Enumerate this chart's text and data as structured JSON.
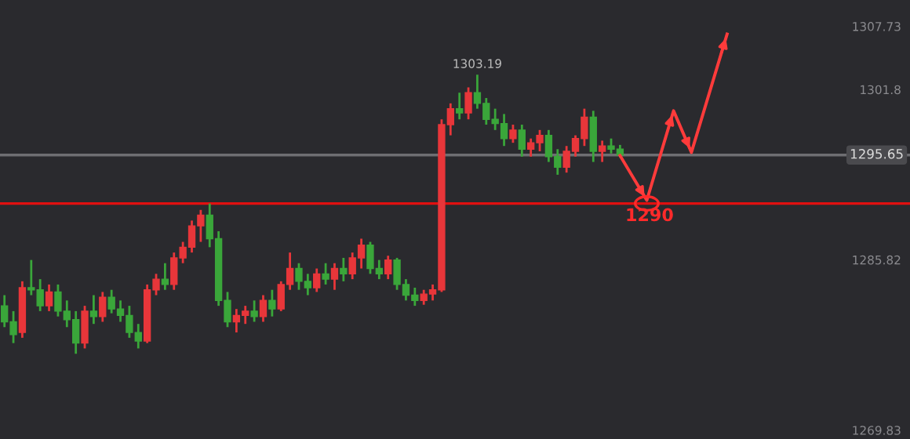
{
  "chart_data": {
    "type": "candlestick",
    "categories": [
      null,
      null,
      null,
      null,
      null,
      null,
      null,
      null,
      null,
      null,
      null,
      null,
      null,
      null,
      null,
      null,
      null,
      null,
      null,
      null,
      null,
      null,
      null,
      null,
      null,
      null,
      null,
      null,
      null,
      null,
      null,
      null,
      null,
      null,
      null,
      null,
      null,
      null,
      null,
      null,
      null,
      null,
      null,
      null,
      null,
      null,
      null,
      null,
      null,
      null,
      null,
      null,
      null,
      null,
      null,
      null,
      null,
      null,
      null,
      null,
      null,
      null,
      null,
      null,
      null,
      null,
      null,
      null,
      null,
      null,
      null,
      null,
      null,
      null,
      null,
      null,
      null,
      null,
      null,
      null,
      null,
      null,
      null,
      null,
      null,
      null,
      null,
      null,
      null,
      null,
      null,
      null,
      null,
      null,
      null,
      null,
      null,
      null,
      null,
      null,
      null,
      null
    ],
    "ohlc": [
      [
        1281.5,
        1282.5,
        1279.5,
        1280.0
      ],
      [
        1280.0,
        1281.0,
        1278.0,
        1278.8
      ],
      [
        1279.0,
        1283.8,
        1278.5,
        1283.2
      ],
      [
        1283.2,
        1285.8,
        1282.5,
        1283.0
      ],
      [
        1283.0,
        1284.0,
        1281.0,
        1281.5
      ],
      [
        1281.5,
        1283.5,
        1281.0,
        1282.8
      ],
      [
        1282.8,
        1283.5,
        1280.5,
        1281.0
      ],
      [
        1281.0,
        1282.0,
        1279.5,
        1280.2
      ],
      [
        1280.2,
        1281.0,
        1277.0,
        1278.0
      ],
      [
        1278.0,
        1281.5,
        1277.5,
        1281.0
      ],
      [
        1281.0,
        1282.5,
        1279.8,
        1280.5
      ],
      [
        1280.5,
        1282.8,
        1280.0,
        1282.3
      ],
      [
        1282.3,
        1283.0,
        1280.8,
        1281.2
      ],
      [
        1281.2,
        1282.0,
        1280.0,
        1280.6
      ],
      [
        1280.6,
        1281.5,
        1278.5,
        1279.0
      ],
      [
        1279.0,
        1279.8,
        1277.5,
        1278.2
      ],
      [
        1278.2,
        1283.5,
        1278.0,
        1283.0
      ],
      [
        1283.0,
        1284.5,
        1282.5,
        1284.0
      ],
      [
        1284.0,
        1285.5,
        1283.0,
        1283.5
      ],
      [
        1283.5,
        1286.5,
        1283.0,
        1286.0
      ],
      [
        1286.0,
        1287.5,
        1285.5,
        1287.0
      ],
      [
        1287.0,
        1289.5,
        1286.5,
        1289.0
      ],
      [
        1289.0,
        1290.5,
        1287.5,
        1290.0
      ],
      [
        1290.0,
        1291.1,
        1287.0,
        1287.8
      ],
      [
        1287.8,
        1288.5,
        1281.5,
        1282.0
      ],
      [
        1282.0,
        1282.8,
        1279.5,
        1280.0
      ],
      [
        1280.0,
        1281.2,
        1279.0,
        1280.6
      ],
      [
        1280.6,
        1281.5,
        1279.8,
        1281.0
      ],
      [
        1281.0,
        1282.0,
        1280.0,
        1280.5
      ],
      [
        1280.5,
        1282.5,
        1280.0,
        1282.0
      ],
      [
        1282.0,
        1283.0,
        1280.5,
        1281.2
      ],
      [
        1281.2,
        1283.8,
        1281.0,
        1283.5
      ],
      [
        1283.5,
        1286.5,
        1283.0,
        1285.0
      ],
      [
        1285.0,
        1285.5,
        1283.0,
        1283.8
      ],
      [
        1283.8,
        1284.5,
        1282.5,
        1283.2
      ],
      [
        1283.2,
        1285.0,
        1282.8,
        1284.5
      ],
      [
        1284.5,
        1285.5,
        1283.5,
        1284.0
      ],
      [
        1284.0,
        1285.5,
        1283.0,
        1285.0
      ],
      [
        1285.0,
        1286.0,
        1283.8,
        1284.5
      ],
      [
        1284.5,
        1286.5,
        1284.0,
        1286.0
      ],
      [
        1286.0,
        1287.8,
        1285.0,
        1287.2
      ],
      [
        1287.2,
        1287.5,
        1284.5,
        1285.0
      ],
      [
        1285.0,
        1285.8,
        1284.0,
        1284.5
      ],
      [
        1284.5,
        1286.2,
        1284.0,
        1285.8
      ],
      [
        1285.8,
        1286.0,
        1283.0,
        1283.5
      ],
      [
        1283.5,
        1284.0,
        1282.0,
        1282.5
      ],
      [
        1282.5,
        1283.2,
        1281.5,
        1282.0
      ],
      [
        1282.0,
        1283.0,
        1281.6,
        1282.6
      ],
      [
        1282.6,
        1283.5,
        1282.0,
        1283.0
      ],
      [
        1283.0,
        1299.0,
        1282.8,
        1298.5
      ],
      [
        1298.5,
        1300.5,
        1297.5,
        1300.0
      ],
      [
        1300.0,
        1301.5,
        1299.0,
        1299.6
      ],
      [
        1299.6,
        1302.0,
        1299.0,
        1301.5
      ],
      [
        1301.5,
        1303.19,
        1300.0,
        1300.5
      ],
      [
        1300.5,
        1301.0,
        1298.5,
        1299.0
      ],
      [
        1299.0,
        1300.0,
        1298.0,
        1298.6
      ],
      [
        1298.6,
        1299.5,
        1296.5,
        1297.2
      ],
      [
        1297.2,
        1298.5,
        1296.8,
        1298.0
      ],
      [
        1298.0,
        1298.5,
        1295.5,
        1296.2
      ],
      [
        1296.2,
        1297.2,
        1295.5,
        1296.8
      ],
      [
        1296.8,
        1298.0,
        1296.0,
        1297.5
      ],
      [
        1297.5,
        1298.0,
        1295.0,
        1295.5
      ],
      [
        1295.5,
        1296.2,
        1293.8,
        1294.5
      ],
      [
        1294.5,
        1296.5,
        1294.0,
        1296.0
      ],
      [
        1296.0,
        1297.5,
        1295.5,
        1297.2
      ],
      [
        1297.2,
        1300.0,
        1296.5,
        1299.2
      ],
      [
        1299.2,
        1299.8,
        1295.0,
        1296.0
      ],
      [
        1296.0,
        1297.0,
        1295.0,
        1296.5
      ],
      [
        1296.5,
        1297.2,
        1295.8,
        1296.2
      ],
      [
        1296.2,
        1296.6,
        1295.4,
        1295.65
      ],
      null,
      null,
      null,
      null,
      null,
      null,
      null,
      null,
      null,
      null,
      null,
      null,
      null,
      null,
      null,
      null,
      null,
      null,
      null,
      null,
      null,
      null,
      null,
      null,
      null,
      null,
      null,
      null,
      null,
      null,
      null,
      null
    ],
    "series": [
      {
        "type": "line",
        "color": "#ff3b3b",
        "values": [
          null,
          null,
          null,
          null,
          null,
          null,
          null,
          null,
          null,
          null,
          null,
          null,
          null,
          null,
          null,
          null,
          null,
          null,
          null,
          null,
          null,
          null,
          null,
          null,
          null,
          null,
          null,
          null,
          null,
          null,
          null,
          null,
          null,
          null,
          null,
          null,
          null,
          null,
          null,
          null,
          null,
          null,
          null,
          null,
          null,
          null,
          null,
          null,
          null,
          null,
          null,
          null,
          null,
          null,
          null,
          null,
          null,
          null,
          null,
          null,
          null,
          null,
          null,
          null,
          null,
          null,
          null,
          null,
          null,
          1295.6,
          null,
          null,
          1291.4,
          null,
          null,
          1299.8,
          null,
          1295.9,
          null,
          null,
          null,
          1307.0,
          null,
          null,
          null,
          null,
          null,
          null,
          null,
          null,
          null,
          null,
          null,
          null,
          null,
          null,
          null,
          null,
          null,
          null,
          null,
          null
        ]
      }
    ],
    "colors": [
      "#3aa63a",
      "#3aa63a",
      "#e8363a",
      "#3aa63a",
      "#3aa63a",
      "#e8363a",
      "#3aa63a",
      "#3aa63a",
      "#3aa63a",
      "#e8363a",
      "#3aa63a",
      "#e8363a",
      "#3aa63a",
      "#3aa63a",
      "#3aa63a",
      "#3aa63a",
      "#e8363a",
      "#e8363a",
      "#3aa63a",
      "#e8363a",
      "#e8363a",
      "#e8363a",
      "#e8363a",
      "#3aa63a",
      "#3aa63a",
      "#3aa63a",
      "#e8363a",
      "#e8363a",
      "#3aa63a",
      "#e8363a",
      "#3aa63a",
      "#e8363a",
      "#e8363a",
      "#3aa63a",
      "#3aa63a",
      "#e8363a",
      "#3aa63a",
      "#e8363a",
      "#3aa63a",
      "#e8363a",
      "#e8363a",
      "#3aa63a",
      "#3aa63a",
      "#e8363a",
      "#3aa63a",
      "#3aa63a",
      "#3aa63a",
      "#e8363a",
      "#e8363a",
      "#e8363a",
      "#e8363a",
      "#3aa63a",
      "#e8363a",
      "#3aa63a",
      "#3aa63a",
      "#3aa63a",
      "#3aa63a",
      "#e8363a",
      "#3aa63a",
      "#e8363a",
      "#e8363a",
      "#3aa63a",
      "#3aa63a",
      "#e8363a",
      "#e8363a",
      "#e8363a",
      "#3aa63a",
      "#e8363a",
      "#3aa63a",
      "#3aa63a",
      null,
      null,
      null,
      null,
      null,
      null,
      null,
      null,
      null,
      null,
      null,
      null,
      null,
      null,
      null,
      null,
      null,
      null,
      null,
      null,
      null,
      null,
      null,
      null,
      null,
      null,
      null,
      null,
      null,
      null,
      null,
      null
    ],
    "ylim": [
      1269.0,
      1310.2
    ],
    "yticks": [
      1307.73,
      1301.8,
      1285.82,
      1269.83
    ],
    "ref_lines": [
      {
        "axis": "y",
        "value": 1291.1,
        "label": null,
        "color": "#e01010"
      },
      {
        "axis": "y",
        "value": 1295.65,
        "label": "1295.65",
        "color": "#6e6e72"
      }
    ],
    "annotations": [
      {
        "text": "1303.19",
        "y": 1303.19
      },
      {
        "text": "1290",
        "y": 1291.1
      }
    ],
    "tick_labels": "y",
    "grid": false,
    "legend": false
  }
}
